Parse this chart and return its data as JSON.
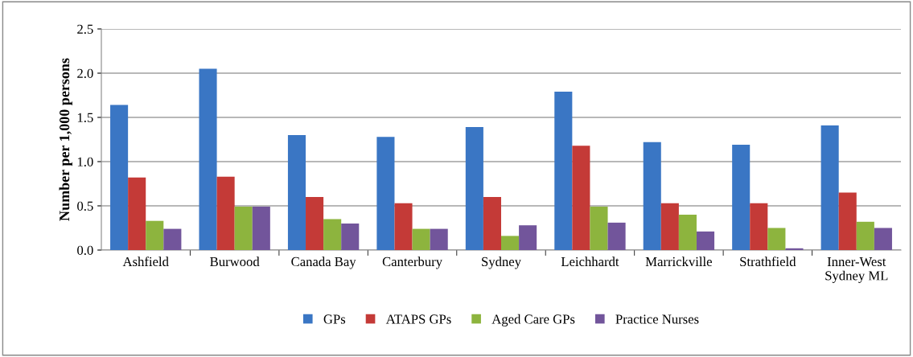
{
  "chart_data": {
    "type": "bar",
    "ylabel": "Number per 1,000 persons",
    "categories": [
      "Ashfield",
      "Burwood",
      "Canada Bay",
      "Canterbury",
      "Sydney",
      "Leichhardt",
      "Marrickville",
      "Strathfield",
      "Inner-West\nSydney ML"
    ],
    "series": [
      {
        "name": "GPs",
        "color": "#3a76c4",
        "values": [
          1.64,
          2.05,
          1.3,
          1.28,
          1.39,
          1.79,
          1.22,
          1.19,
          1.41
        ]
      },
      {
        "name": "ATAPS GPs",
        "color": "#c43a37",
        "values": [
          0.82,
          0.83,
          0.6,
          0.53,
          0.6,
          1.18,
          0.53,
          0.53,
          0.65
        ]
      },
      {
        "name": "Aged Care GPs",
        "color": "#8db43e",
        "values": [
          0.33,
          0.49,
          0.35,
          0.24,
          0.16,
          0.49,
          0.4,
          0.25,
          0.32
        ]
      },
      {
        "name": "Practice Nurses",
        "color": "#72559b",
        "values": [
          0.24,
          0.49,
          0.3,
          0.24,
          0.28,
          0.31,
          0.21,
          0.02,
          0.25
        ]
      }
    ],
    "ylim": [
      0,
      2.5
    ],
    "yticks": [
      {
        "value": 0,
        "label": "0.0"
      },
      {
        "value": 0.5,
        "label": "0.5"
      },
      {
        "value": 1,
        "label": "1.0"
      },
      {
        "value": 1.5,
        "label": "1.5"
      },
      {
        "value": 2,
        "label": "2.0"
      },
      {
        "value": 2.5,
        "label": "2.5"
      }
    ],
    "grid": "y",
    "legend": "bottom"
  }
}
